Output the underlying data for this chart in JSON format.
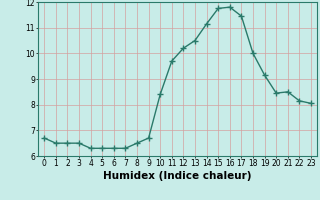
{
  "x": [
    0,
    1,
    2,
    3,
    4,
    5,
    6,
    7,
    8,
    9,
    10,
    11,
    12,
    13,
    14,
    15,
    16,
    17,
    18,
    19,
    20,
    21,
    22,
    23
  ],
  "y": [
    6.7,
    6.5,
    6.5,
    6.5,
    6.3,
    6.3,
    6.3,
    6.3,
    6.5,
    6.7,
    8.4,
    9.7,
    10.2,
    10.5,
    11.15,
    11.75,
    11.8,
    11.45,
    10.0,
    9.15,
    8.45,
    8.5,
    8.15,
    8.05
  ],
  "line_color": "#2a7a6a",
  "marker": "+",
  "marker_size": 4,
  "background_color": "#c8ece8",
  "grid_color": "#d4a0a0",
  "xlabel": "Humidex (Indice chaleur)",
  "ylim": [
    6,
    12
  ],
  "xlim": [
    -0.5,
    23.5
  ],
  "yticks": [
    6,
    7,
    8,
    9,
    10,
    11,
    12
  ],
  "xticks": [
    0,
    1,
    2,
    3,
    4,
    5,
    6,
    7,
    8,
    9,
    10,
    11,
    12,
    13,
    14,
    15,
    16,
    17,
    18,
    19,
    20,
    21,
    22,
    23
  ],
  "tick_fontsize": 5.5,
  "xlabel_fontsize": 7.5,
  "line_width": 1.0,
  "spine_color": "#2a7a6a"
}
